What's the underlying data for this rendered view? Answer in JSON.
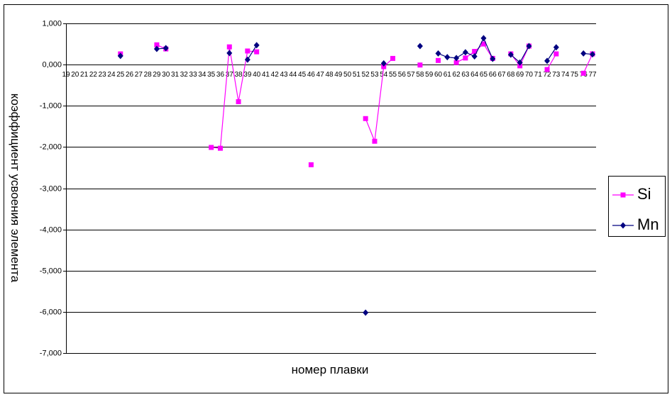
{
  "chart_data": {
    "type": "line",
    "x_label": "номер плавки",
    "y_label": "коэффициент усвоения элемента",
    "categories": [
      "19",
      "20",
      "21",
      "22",
      "23",
      "24",
      "25",
      "26",
      "27",
      "28",
      "29",
      "30",
      "31",
      "32",
      "33",
      "34",
      "35",
      "36",
      "37",
      "38",
      "39",
      "40",
      "41",
      "42",
      "43",
      "44",
      "45",
      "46",
      "47",
      "48",
      "49",
      "50",
      "51",
      "52",
      "53",
      "54",
      "55",
      "56",
      "57",
      "58",
      "59",
      "60",
      "61",
      "62",
      "63",
      "64",
      "65",
      "66",
      "67",
      "68",
      "69",
      "70",
      "71",
      "72",
      "73",
      "74",
      "75",
      "76",
      "77"
    ],
    "series": [
      {
        "name": "Si",
        "color": "#ff00ff",
        "marker": "square",
        "values": [
          null,
          null,
          null,
          null,
          null,
          null,
          0.26,
          null,
          null,
          null,
          0.48,
          0.38,
          null,
          null,
          null,
          null,
          -2.01,
          -2.03,
          0.43,
          -0.9,
          0.33,
          0.31,
          null,
          null,
          null,
          null,
          null,
          -2.43,
          null,
          null,
          null,
          null,
          null,
          -1.31,
          -1.86,
          -0.05,
          0.15,
          null,
          null,
          -0.01,
          null,
          0.1,
          null,
          0.05,
          0.16,
          0.32,
          0.5,
          0.15,
          null,
          0.26,
          -0.03,
          0.45,
          null,
          -0.12,
          0.26,
          null,
          null,
          -0.21,
          0.26
        ]
      },
      {
        "name": "Mn",
        "color": "#000080",
        "marker": "diamond",
        "values": [
          null,
          null,
          null,
          null,
          null,
          null,
          0.21,
          null,
          null,
          null,
          0.38,
          0.4,
          null,
          null,
          null,
          null,
          null,
          null,
          0.28,
          null,
          0.12,
          0.47,
          null,
          null,
          null,
          null,
          null,
          null,
          null,
          null,
          null,
          null,
          null,
          -6.02,
          null,
          0.03,
          null,
          null,
          null,
          0.45,
          null,
          0.27,
          0.18,
          0.16,
          0.3,
          0.2,
          0.64,
          0.14,
          null,
          0.24,
          0.05,
          0.45,
          null,
          0.09,
          0.42,
          null,
          null,
          0.27,
          0.25
        ]
      }
    ],
    "ylim": [
      -7,
      1
    ],
    "yticks": [
      {
        "value": 1,
        "label": "1,000"
      },
      {
        "value": 0,
        "label": "0,000"
      },
      {
        "value": -1,
        "label": "-1,000"
      },
      {
        "value": -2,
        "label": "-2,000"
      },
      {
        "value": -3,
        "label": "-3,000"
      },
      {
        "value": -4,
        "label": "-4,000"
      },
      {
        "value": -5,
        "label": "-5,000"
      },
      {
        "value": -6,
        "label": "-6,000"
      },
      {
        "value": -7,
        "label": "-7,000"
      }
    ],
    "grid": true,
    "legend": "right"
  }
}
